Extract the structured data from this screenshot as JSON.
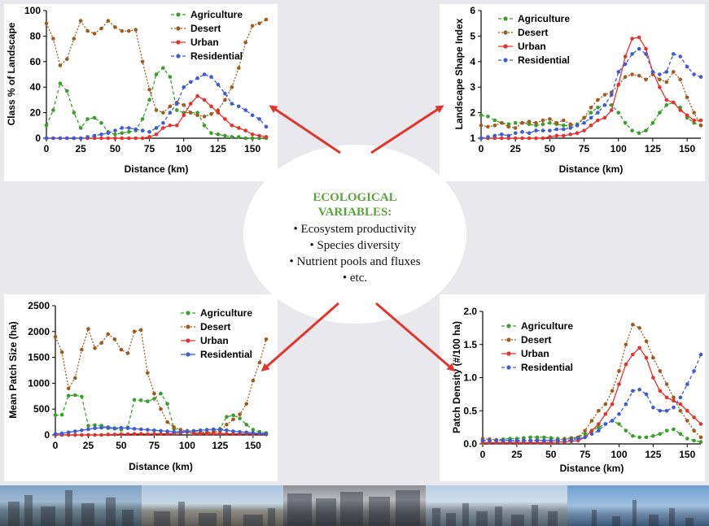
{
  "center": {
    "heading_lines": [
      "ECOLOGICAL",
      "VARIABLES:"
    ],
    "items": [
      "• Ecosystem productivity",
      "• Species diversity",
      "• Nutrient pools and fluxes",
      "• etc."
    ]
  },
  "colors": {
    "agriculture": "#3a9e2a",
    "desert": "#a05a1c",
    "urban": "#e8302a",
    "residential": "#3d5bd6",
    "arrow": "#e0352b"
  },
  "photos": [
    "photo-1",
    "photo-2",
    "photo-3",
    "photo-4",
    "photo-5"
  ],
  "chart_data": [
    {
      "id": "class-pct",
      "type": "line",
      "ylabel": "Class % of Landscape",
      "xlabel": "Distance (km)",
      "xlim": [
        0,
        160
      ],
      "ylim": [
        0,
        100
      ],
      "xticks": [
        0,
        25,
        50,
        75,
        100,
        125,
        150
      ],
      "yticks": [
        0,
        20,
        40,
        60,
        80,
        100
      ],
      "ytick_labels": [
        "0",
        "20",
        "40",
        "60",
        "80",
        "100"
      ],
      "legend": "top-right",
      "x": [
        0,
        5,
        10,
        15,
        20,
        25,
        30,
        35,
        40,
        45,
        50,
        55,
        60,
        65,
        70,
        75,
        80,
        85,
        90,
        95,
        100,
        105,
        110,
        115,
        120,
        125,
        130,
        135,
        140,
        145,
        150,
        155,
        160
      ],
      "series": [
        {
          "name": "Agriculture",
          "key": "agriculture",
          "style": "dashed",
          "values": [
            10,
            22,
            43,
            37,
            20,
            8,
            15,
            16,
            12,
            5,
            3,
            4,
            5,
            6,
            15,
            30,
            50,
            55,
            48,
            22,
            20,
            20,
            20,
            10,
            4,
            3,
            2,
            1,
            1,
            0,
            0,
            0,
            0
          ]
        },
        {
          "name": "Desert",
          "key": "desert",
          "style": "dotted",
          "values": [
            90,
            78,
            57,
            62,
            78,
            92,
            84,
            82,
            86,
            92,
            87,
            84,
            84,
            85,
            60,
            38,
            22,
            20,
            25,
            28,
            26,
            20,
            18,
            17,
            19,
            22,
            30,
            40,
            55,
            75,
            88,
            90,
            93
          ]
        },
        {
          "name": "Urban",
          "key": "urban",
          "style": "solid",
          "values": [
            0,
            0,
            0,
            0,
            0,
            0,
            0,
            0,
            0,
            0,
            0,
            0,
            0,
            0,
            0,
            1,
            3,
            8,
            10,
            10,
            18,
            27,
            33,
            30,
            25,
            20,
            15,
            10,
            8,
            6,
            3,
            2,
            1
          ]
        },
        {
          "name": "Residential",
          "key": "residential",
          "style": "dashed",
          "values": [
            0,
            0,
            0,
            0,
            0,
            0,
            1,
            2,
            3,
            4,
            6,
            8,
            8,
            7,
            6,
            5,
            8,
            12,
            20,
            27,
            40,
            44,
            47,
            50,
            48,
            42,
            35,
            27,
            25,
            22,
            18,
            15,
            9
          ]
        }
      ]
    },
    {
      "id": "shape-index",
      "type": "line",
      "ylabel": "Landscape Shape Index",
      "xlabel": "Distance (km)",
      "xlim": [
        0,
        160
      ],
      "ylim": [
        1,
        6
      ],
      "xticks": [
        0,
        25,
        50,
        75,
        100,
        125,
        150
      ],
      "yticks": [
        1,
        2,
        3,
        4,
        5,
        6
      ],
      "ytick_labels": [
        "1",
        "2",
        "3",
        "4",
        "5",
        "6"
      ],
      "legend": "top-left",
      "x": [
        0,
        5,
        10,
        15,
        20,
        25,
        30,
        35,
        40,
        45,
        50,
        55,
        60,
        65,
        70,
        75,
        80,
        85,
        90,
        95,
        100,
        105,
        110,
        115,
        120,
        125,
        130,
        135,
        140,
        145,
        150,
        155,
        160
      ],
      "series": [
        {
          "name": "Agriculture",
          "key": "agriculture",
          "style": "dashed",
          "values": [
            1.9,
            1.85,
            1.7,
            1.6,
            1.55,
            1.6,
            1.6,
            1.55,
            1.5,
            1.55,
            1.6,
            1.55,
            1.5,
            1.5,
            1.55,
            1.8,
            2.0,
            2.2,
            2.3,
            2.3,
            2.0,
            1.6,
            1.3,
            1.2,
            1.3,
            1.6,
            2.0,
            2.3,
            2.4,
            2.2,
            1.8,
            1.6,
            1.5
          ]
        },
        {
          "name": "Desert",
          "key": "desert",
          "style": "dotted",
          "values": [
            1.5,
            1.45,
            1.5,
            1.6,
            1.45,
            1.4,
            1.6,
            1.65,
            1.6,
            1.7,
            1.75,
            1.6,
            1.7,
            1.55,
            1.5,
            1.8,
            2.2,
            2.5,
            2.7,
            2.8,
            3.1,
            3.4,
            3.5,
            3.45,
            3.3,
            3.5,
            3.3,
            3.2,
            3.6,
            3.3,
            2.6,
            2.0,
            1.5
          ]
        },
        {
          "name": "Urban",
          "key": "urban",
          "style": "solid",
          "values": [
            1,
            1,
            1,
            1,
            1,
            1,
            1,
            1,
            1,
            1,
            1.05,
            1.1,
            1.1,
            1.15,
            1.2,
            1.3,
            1.5,
            1.7,
            1.8,
            2.1,
            3.1,
            4.2,
            4.9,
            4.95,
            4.5,
            3.6,
            3.0,
            2.5,
            2.4,
            2.1,
            1.9,
            1.7,
            1.7
          ]
        },
        {
          "name": "Residential",
          "key": "residential",
          "style": "dashed",
          "values": [
            1,
            1.05,
            1.1,
            1.15,
            1.1,
            1.2,
            1.25,
            1.2,
            1.3,
            1.3,
            1.3,
            1.35,
            1.35,
            1.4,
            1.5,
            1.6,
            1.8,
            2.0,
            2.3,
            2.7,
            3.6,
            3.9,
            4.3,
            4.5,
            4.3,
            3.6,
            3.5,
            3.6,
            4.3,
            4.2,
            3.8,
            3.5,
            3.4
          ]
        }
      ]
    },
    {
      "id": "patch-size",
      "type": "line",
      "ylabel": "Mean Patch Size (ha)",
      "xlabel": "Distance (km)",
      "xlim": [
        0,
        160
      ],
      "ylim": [
        0,
        2500
      ],
      "xticks": [
        0,
        25,
        50,
        75,
        100,
        125,
        150
      ],
      "yticks": [
        0,
        500,
        1000,
        1500,
        2000,
        2500
      ],
      "ytick_labels": [
        "0",
        "500",
        "1000",
        "1500",
        "2000",
        "2500"
      ],
      "legend": "top-right",
      "x": [
        0,
        5,
        10,
        15,
        20,
        25,
        30,
        35,
        40,
        45,
        50,
        55,
        60,
        65,
        70,
        75,
        80,
        85,
        90,
        95,
        100,
        105,
        110,
        115,
        120,
        125,
        130,
        135,
        140,
        145,
        150,
        155,
        160
      ],
      "series": [
        {
          "name": "Agriculture",
          "key": "agriculture",
          "style": "dashed",
          "values": [
            380,
            390,
            760,
            770,
            740,
            180,
            190,
            180,
            130,
            120,
            100,
            150,
            680,
            670,
            650,
            700,
            800,
            600,
            120,
            80,
            50,
            40,
            30,
            40,
            80,
            120,
            350,
            380,
            320,
            200,
            100,
            60,
            40
          ]
        },
        {
          "name": "Desert",
          "key": "desert",
          "style": "dotted",
          "values": [
            1900,
            1600,
            900,
            1100,
            1650,
            2050,
            1680,
            1780,
            1950,
            1850,
            1650,
            1580,
            2000,
            2030,
            1200,
            800,
            500,
            250,
            150,
            100,
            80,
            70,
            60,
            50,
            50,
            80,
            200,
            300,
            400,
            600,
            1050,
            1400,
            1850
          ]
        },
        {
          "name": "Urban",
          "key": "urban",
          "style": "solid",
          "values": [
            0,
            0,
            0,
            0,
            0,
            0,
            0,
            0,
            10,
            10,
            15,
            15,
            20,
            20,
            15,
            20,
            20,
            20,
            30,
            40,
            60,
            30,
            20,
            20,
            30,
            30,
            20,
            20,
            20,
            20,
            20,
            15,
            10
          ]
        },
        {
          "name": "Residential",
          "key": "residential",
          "style": "solid",
          "values": [
            20,
            30,
            50,
            70,
            90,
            110,
            130,
            140,
            150,
            130,
            140,
            130,
            120,
            110,
            100,
            90,
            80,
            70,
            60,
            60,
            70,
            80,
            90,
            100,
            110,
            100,
            90,
            70,
            60,
            50,
            40,
            30,
            20
          ]
        }
      ]
    },
    {
      "id": "patch-density",
      "type": "line",
      "ylabel": "Patch Density (#/100 ha)",
      "xlabel": "Distance (km)",
      "xlim": [
        0,
        160
      ],
      "ylim": [
        0,
        2.0
      ],
      "xticks": [
        0,
        25,
        50,
        75,
        100,
        125,
        150
      ],
      "yticks": [
        0,
        0.5,
        1.0,
        1.5,
        2.0
      ],
      "ytick_labels": [
        "0.0",
        "0.5",
        "1.0",
        "1.5",
        "2.0"
      ],
      "legend": "top-left",
      "x": [
        0,
        5,
        10,
        15,
        20,
        25,
        30,
        35,
        40,
        45,
        50,
        55,
        60,
        65,
        70,
        75,
        80,
        85,
        90,
        95,
        100,
        105,
        110,
        115,
        120,
        125,
        130,
        135,
        140,
        145,
        150,
        155,
        160
      ],
      "series": [
        {
          "name": "Agriculture",
          "key": "agriculture",
          "style": "dashed",
          "values": [
            0.05,
            0.05,
            0.06,
            0.07,
            0.08,
            0.08,
            0.09,
            0.1,
            0.1,
            0.1,
            0.09,
            0.08,
            0.08,
            0.09,
            0.1,
            0.15,
            0.2,
            0.25,
            0.3,
            0.35,
            0.3,
            0.2,
            0.12,
            0.1,
            0.1,
            0.12,
            0.15,
            0.2,
            0.22,
            0.15,
            0.08,
            0.05,
            0.03
          ]
        },
        {
          "name": "Desert",
          "key": "desert",
          "style": "dotted",
          "values": [
            0.08,
            0.07,
            0.06,
            0.05,
            0.05,
            0.04,
            0.05,
            0.05,
            0.06,
            0.05,
            0.05,
            0.06,
            0.07,
            0.08,
            0.1,
            0.2,
            0.35,
            0.5,
            0.6,
            0.8,
            1.1,
            1.5,
            1.8,
            1.75,
            1.55,
            1.3,
            1.1,
            0.9,
            0.7,
            0.5,
            0.35,
            0.2,
            0.1
          ]
        },
        {
          "name": "Urban",
          "key": "urban",
          "style": "solid",
          "values": [
            0.02,
            0.02,
            0.02,
            0.02,
            0.02,
            0.02,
            0.02,
            0.02,
            0.02,
            0.02,
            0.02,
            0.03,
            0.03,
            0.04,
            0.05,
            0.1,
            0.2,
            0.3,
            0.45,
            0.6,
            0.9,
            1.2,
            1.35,
            1.45,
            1.3,
            1.0,
            0.8,
            0.7,
            0.65,
            0.6,
            0.5,
            0.4,
            0.3
          ]
        },
        {
          "name": "Residential",
          "key": "residential",
          "style": "dashed",
          "values": [
            0.05,
            0.05,
            0.05,
            0.05,
            0.05,
            0.05,
            0.05,
            0.05,
            0.05,
            0.05,
            0.05,
            0.05,
            0.05,
            0.06,
            0.08,
            0.1,
            0.15,
            0.2,
            0.3,
            0.35,
            0.45,
            0.6,
            0.8,
            0.82,
            0.75,
            0.55,
            0.5,
            0.5,
            0.55,
            0.7,
            0.9,
            1.1,
            1.35
          ]
        }
      ]
    }
  ]
}
